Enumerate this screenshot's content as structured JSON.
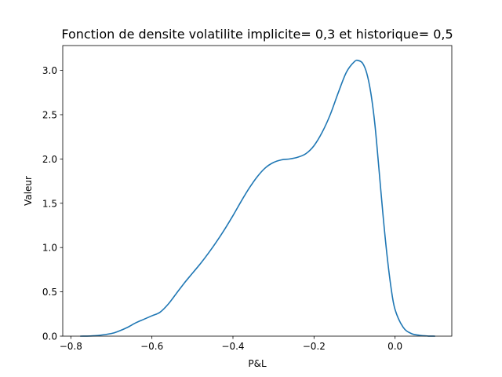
{
  "chart_data": {
    "type": "line",
    "title": "Fonction de densite volatilite implicite= 0,3 et historique= 0,5",
    "xlabel": "P&L",
    "ylabel": "Valeur",
    "xlim": [
      -0.82,
      0.14
    ],
    "ylim": [
      0,
      3.28
    ],
    "grid": false,
    "legend": "none",
    "x_ticks": [
      -0.8,
      -0.6,
      -0.4,
      -0.2,
      0.0
    ],
    "x_tick_labels": [
      "−0.8",
      "−0.6",
      "−0.4",
      "−0.2",
      "0.0"
    ],
    "y_ticks": [
      0.0,
      0.5,
      1.0,
      1.5,
      2.0,
      2.5,
      3.0
    ],
    "y_tick_labels": [
      "0.0",
      "0.5",
      "1.0",
      "1.5",
      "2.0",
      "2.5",
      "3.0"
    ],
    "series": [
      {
        "color": "#1f77b4",
        "x": [
          -0.776,
          -0.74,
          -0.7,
          -0.68,
          -0.66,
          -0.64,
          -0.62,
          -0.6,
          -0.58,
          -0.56,
          -0.54,
          -0.52,
          -0.5,
          -0.48,
          -0.46,
          -0.44,
          -0.42,
          -0.4,
          -0.38,
          -0.36,
          -0.34,
          -0.32,
          -0.3,
          -0.28,
          -0.26,
          -0.24,
          -0.22,
          -0.2,
          -0.18,
          -0.16,
          -0.14,
          -0.12,
          -0.1,
          -0.09,
          -0.08,
          -0.07,
          -0.06,
          -0.05,
          -0.04,
          -0.03,
          -0.02,
          -0.01,
          0.0,
          0.02,
          0.04,
          0.06,
          0.08,
          0.098
        ],
        "y": [
          0.0,
          0.005,
          0.03,
          0.06,
          0.1,
          0.15,
          0.19,
          0.23,
          0.27,
          0.36,
          0.48,
          0.6,
          0.71,
          0.82,
          0.94,
          1.07,
          1.21,
          1.36,
          1.52,
          1.67,
          1.8,
          1.9,
          1.96,
          1.99,
          2.0,
          2.02,
          2.06,
          2.15,
          2.3,
          2.5,
          2.75,
          2.98,
          3.1,
          3.11,
          3.08,
          2.97,
          2.75,
          2.4,
          1.9,
          1.38,
          0.92,
          0.55,
          0.3,
          0.1,
          0.03,
          0.01,
          0.002,
          0.0
        ]
      }
    ]
  }
}
